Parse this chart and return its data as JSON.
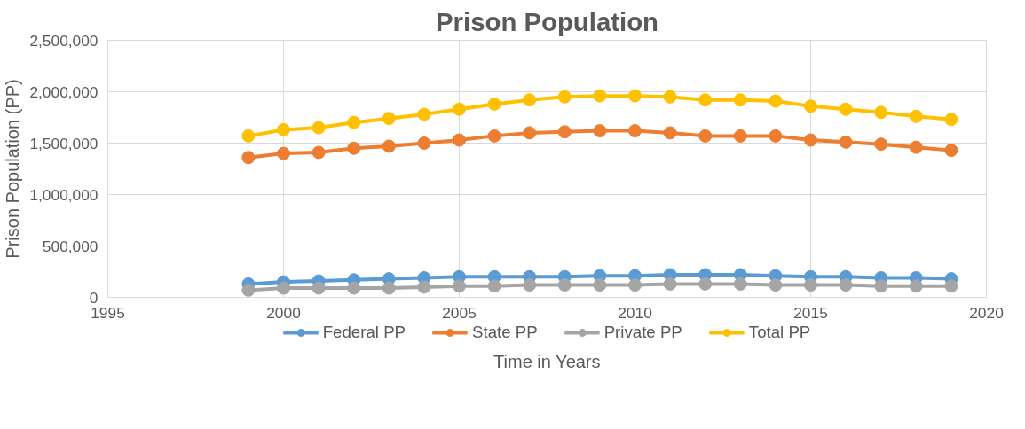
{
  "chart_data": {
    "type": "line",
    "title": "Prison Population",
    "xlabel": "Time in Years",
    "ylabel": "Prison Population (PP)",
    "x": [
      1999,
      2000,
      2001,
      2002,
      2003,
      2004,
      2005,
      2006,
      2007,
      2008,
      2009,
      2010,
      2011,
      2012,
      2013,
      2014,
      2015,
      2016,
      2017,
      2018,
      2019
    ],
    "series": [
      {
        "name": "Federal PP",
        "color": "#5b9bd5",
        "values": [
          130000,
          150000,
          160000,
          170000,
          180000,
          190000,
          200000,
          200000,
          200000,
          200000,
          210000,
          210000,
          220000,
          220000,
          220000,
          210000,
          200000,
          200000,
          190000,
          190000,
          180000
        ]
      },
      {
        "name": "State PP",
        "color": "#ed7d31",
        "values": [
          1360000,
          1400000,
          1410000,
          1450000,
          1470000,
          1500000,
          1530000,
          1570000,
          1600000,
          1610000,
          1620000,
          1620000,
          1600000,
          1570000,
          1570000,
          1570000,
          1530000,
          1510000,
          1490000,
          1460000,
          1430000
        ]
      },
      {
        "name": "Private PP",
        "color": "#a5a5a5",
        "values": [
          70000,
          90000,
          90000,
          90000,
          90000,
          100000,
          110000,
          110000,
          120000,
          120000,
          120000,
          120000,
          130000,
          130000,
          130000,
          120000,
          120000,
          120000,
          110000,
          110000,
          110000
        ]
      },
      {
        "name": "Total PP",
        "color": "#ffc000",
        "values": [
          1570000,
          1630000,
          1650000,
          1700000,
          1740000,
          1780000,
          1830000,
          1880000,
          1920000,
          1950000,
          1960000,
          1960000,
          1950000,
          1920000,
          1920000,
          1910000,
          1860000,
          1830000,
          1800000,
          1760000,
          1730000
        ]
      }
    ],
    "xlim": [
      1995,
      2020
    ],
    "xticks": [
      1995,
      2000,
      2005,
      2010,
      2015,
      2020
    ],
    "ylim": [
      0,
      2500000
    ],
    "yticks": [
      {
        "value": 0,
        "label": "0"
      },
      {
        "value": 500000,
        "label": "500,000"
      },
      {
        "value": 1000000,
        "label": "1,000,000"
      },
      {
        "value": 1500000,
        "label": "1,500,000"
      },
      {
        "value": 2000000,
        "label": "2,000,000"
      },
      {
        "value": 2500000,
        "label": "2,500,000"
      }
    ],
    "grid": true,
    "legend": "bottom",
    "marker": "circle",
    "line_style": "solid"
  }
}
